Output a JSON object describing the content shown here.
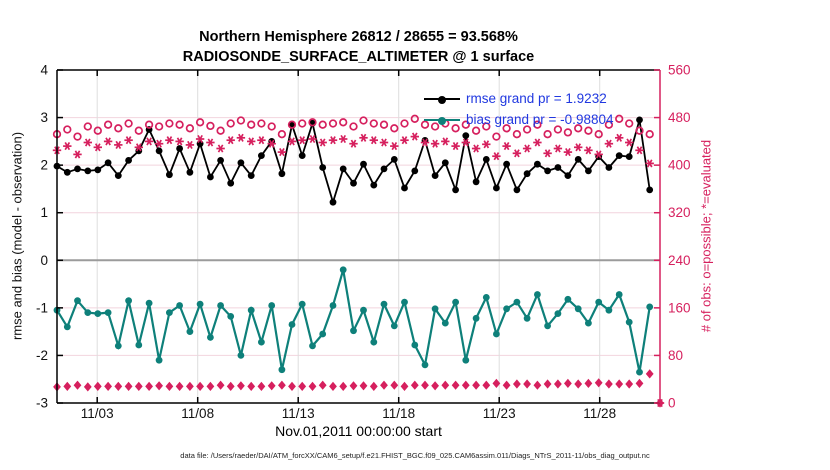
{
  "figure": {
    "caption": "data file: /Users/raeder/DAI/ATM_forcXX/CAM6_setup/f.e21.FHIST_BGC.f09_025.CAM6assim.011/Diags_NTrS_2011-11/obs_diag_output.nc"
  },
  "colors": {
    "rmse_line": "#000000",
    "bias_line": "#0E807A",
    "obs_pink": "#D6205E",
    "legend_text_blue": "#2038E0",
    "grid_pink": "#f2d4de",
    "grid_gray": "#dedede",
    "zero_line_gray": "#9b9b9b"
  },
  "chart_data": {
    "type": "line",
    "title": "Northern Hemisphere 26812 / 28655 = 93.568%",
    "subtitle": "RADIOSONDE_SURFACE_ALTIMETER @ 1 surface",
    "xlabel": "Nov.01,2011 00:00:00 start",
    "ylabel_left": "rmse and bias (model - observation)",
    "ylabel_right": "# of obs: o=possible; *=evaluated",
    "ylim_left": [
      -3,
      4
    ],
    "yticks_left": [
      4,
      3,
      2,
      1,
      0,
      -1,
      -2,
      -3
    ],
    "ylim_right": [
      0,
      560
    ],
    "yticks_right": [
      560,
      480,
      400,
      320,
      240,
      160,
      80,
      0
    ],
    "x_range_days": [
      0,
      30
    ],
    "x_ticks": [
      {
        "day": 2,
        "label": "11/03"
      },
      {
        "day": 7,
        "label": "11/08"
      },
      {
        "day": 12,
        "label": "11/13"
      },
      {
        "day": 17,
        "label": "11/18"
      },
      {
        "day": 22,
        "label": "11/23"
      },
      {
        "day": 27,
        "label": "11/28"
      }
    ],
    "grid_horizontal_left": [
      3,
      2,
      1,
      -1,
      -2
    ],
    "zero_line": true,
    "legend": [
      {
        "label": "rmse grand pr = 1.9232",
        "series": "rmse",
        "value": 1.9232
      },
      {
        "label": "bias grand pr = -0.98804",
        "series": "bias",
        "value": -0.98804
      }
    ],
    "x_days": [
      0,
      0.51,
      1.02,
      1.53,
      2.03,
      2.54,
      3.05,
      3.56,
      4.07,
      4.58,
      5.08,
      5.59,
      6.1,
      6.61,
      7.12,
      7.63,
      8.14,
      8.64,
      9.15,
      9.66,
      10.17,
      10.68,
      11.19,
      11.69,
      12.2,
      12.71,
      13.22,
      13.73,
      14.24,
      14.75,
      15.25,
      15.76,
      16.27,
      16.78,
      17.29,
      17.8,
      18.31,
      18.81,
      19.32,
      19.83,
      20.34,
      20.85,
      21.36,
      21.86,
      22.37,
      22.88,
      23.39,
      23.9,
      24.41,
      24.92,
      25.42,
      25.93,
      26.44,
      26.95,
      27.46,
      27.97,
      28.47,
      28.98,
      29.49,
      30.0
    ],
    "series": [
      {
        "name": "rmse",
        "axis": "left",
        "color": "#000000",
        "marker": "dot",
        "line": true,
        "values": [
          1.98,
          1.85,
          1.92,
          1.88,
          1.9,
          2.05,
          1.78,
          2.1,
          2.3,
          2.75,
          2.3,
          1.8,
          2.35,
          1.85,
          2.45,
          1.75,
          2.1,
          1.62,
          2.05,
          1.78,
          2.2,
          2.5,
          1.82,
          2.85,
          2.2,
          2.88,
          1.95,
          1.22,
          1.92,
          1.62,
          2.02,
          1.58,
          1.92,
          2.12,
          1.52,
          1.88,
          2.52,
          1.78,
          2.05,
          1.48,
          2.62,
          1.65,
          2.12,
          1.52,
          2.02,
          1.48,
          1.82,
          2.02,
          1.88,
          1.95,
          1.78,
          2.12,
          1.88,
          2.18,
          1.95,
          2.2,
          2.18,
          2.95,
          1.48,
          null
        ]
      },
      {
        "name": "bias",
        "axis": "left",
        "color": "#0E807A",
        "marker": "dot",
        "line": true,
        "values": [
          -1.05,
          -1.4,
          -0.85,
          -1.1,
          -1.12,
          -1.1,
          -1.8,
          -0.85,
          -1.78,
          -0.9,
          -2.1,
          -1.1,
          -0.95,
          -1.5,
          -0.92,
          -1.62,
          -0.95,
          -1.18,
          -2.0,
          -1.05,
          -1.72,
          -0.95,
          -2.3,
          -1.35,
          -0.92,
          -1.8,
          -1.55,
          -0.95,
          -0.2,
          -1.48,
          -1.05,
          -1.72,
          -0.92,
          -1.38,
          -0.88,
          -1.78,
          -2.2,
          -1.02,
          -1.32,
          -0.88,
          -2.1,
          -1.22,
          -0.78,
          -1.55,
          -1.02,
          -0.88,
          -1.22,
          -0.72,
          -1.38,
          -1.12,
          -0.82,
          -1.02,
          -1.32,
          -0.88,
          -1.05,
          -0.72,
          -1.3,
          -2.35,
          -0.98,
          null
        ]
      },
      {
        "name": "num_obs_possible",
        "axis": "right",
        "color": "#D6205E",
        "marker": "circle-open",
        "line": false,
        "values": [
          452,
          460,
          448,
          465,
          458,
          468,
          462,
          470,
          458,
          468,
          465,
          470,
          468,
          462,
          472,
          466,
          458,
          470,
          475,
          468,
          470,
          465,
          452,
          468,
          470,
          472,
          468,
          470,
          472,
          465,
          475,
          470,
          468,
          462,
          470,
          478,
          468,
          465,
          470,
          462,
          468,
          458,
          465,
          448,
          462,
          452,
          460,
          468,
          452,
          460,
          455,
          462,
          458,
          452,
          468,
          478,
          470,
          458,
          452,
          null
        ]
      },
      {
        "name": "num_obs_evaluated",
        "axis": "right",
        "color": "#D6205E",
        "marker": "asterisk",
        "line": false,
        "values": [
          425,
          432,
          418,
          438,
          430,
          440,
          434,
          442,
          430,
          440,
          436,
          442,
          440,
          434,
          444,
          438,
          428,
          442,
          446,
          440,
          442,
          436,
          422,
          440,
          442,
          444,
          438,
          442,
          444,
          436,
          446,
          442,
          438,
          432,
          442,
          448,
          438,
          436,
          440,
          432,
          438,
          428,
          435,
          415,
          432,
          420,
          428,
          438,
          420,
          428,
          422,
          430,
          425,
          418,
          436,
          446,
          438,
          425,
          403,
          0
        ]
      },
      {
        "name": "num_obs_diamond",
        "axis": "right",
        "color": "#D6205E",
        "marker": "diamond",
        "line": false,
        "values": [
          27,
          28,
          30,
          27,
          28,
          28,
          28,
          28,
          28,
          28,
          29,
          28,
          28,
          28,
          28,
          28,
          30,
          28,
          29,
          28,
          28,
          29,
          30,
          28,
          28,
          28,
          30,
          28,
          28,
          29,
          29,
          28,
          30,
          30,
          28,
          30,
          30,
          29,
          30,
          30,
          30,
          30,
          30,
          33,
          30,
          32,
          32,
          30,
          32,
          32,
          33,
          32,
          33,
          34,
          32,
          32,
          32,
          33,
          49,
          0
        ]
      }
    ]
  }
}
